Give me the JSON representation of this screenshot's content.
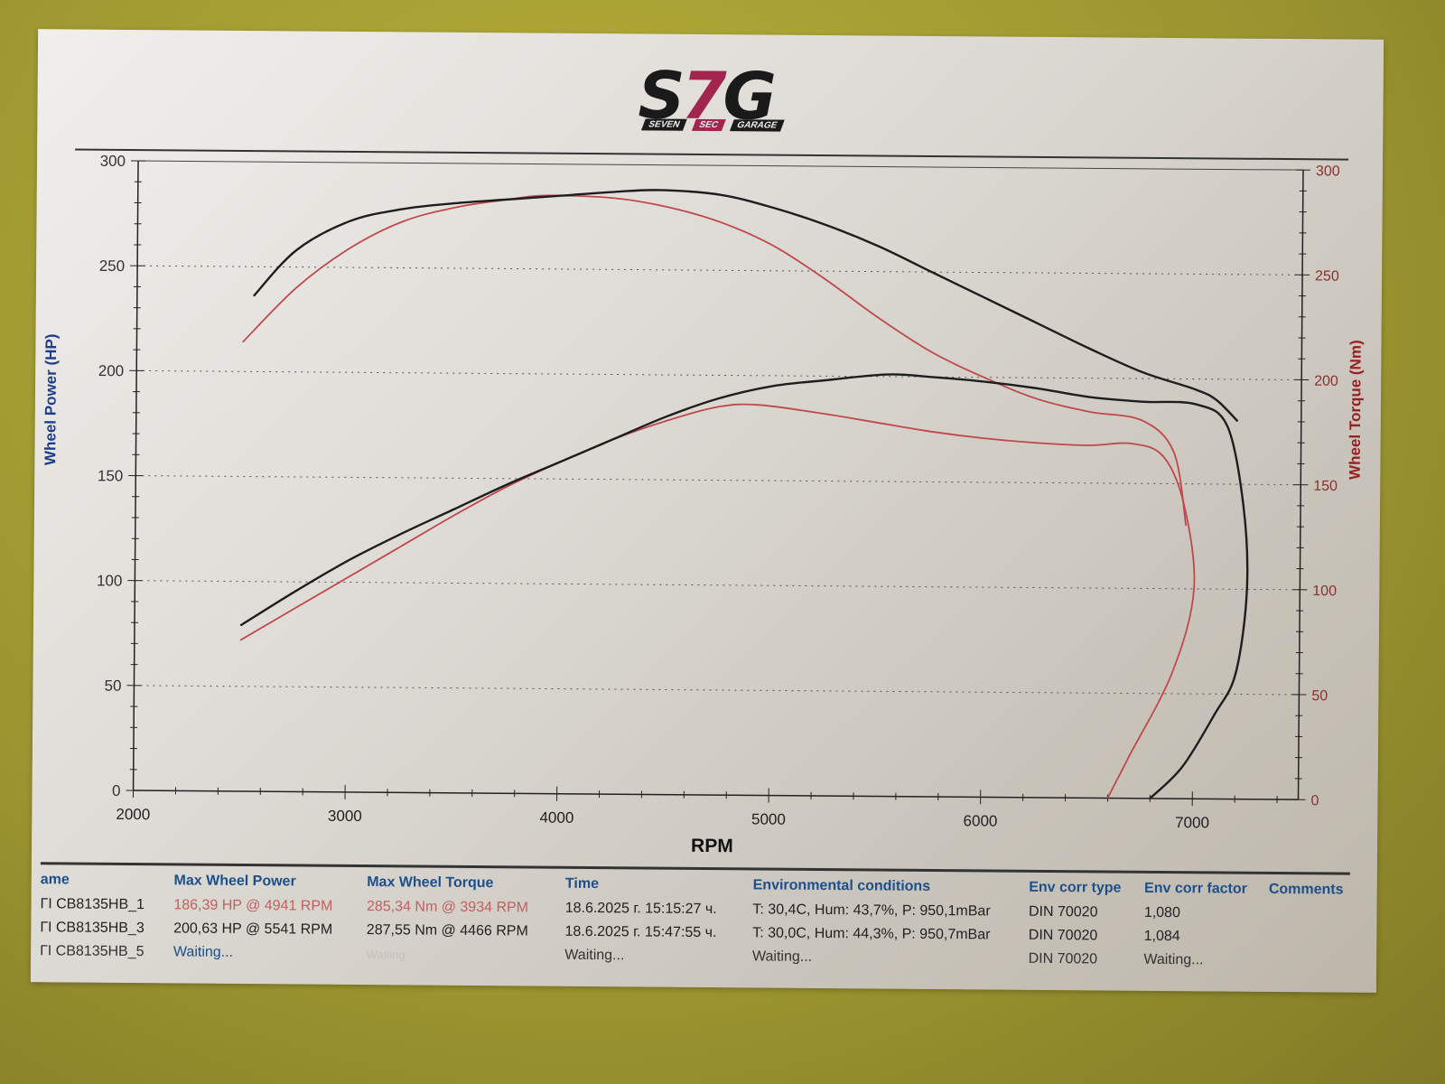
{
  "logo": {
    "letters_left": "S",
    "letters_mid": "7",
    "letters_right": "G",
    "sub": [
      "SEVEN",
      "SEC",
      "GARAGE"
    ]
  },
  "colors": {
    "run1": "#c0484a",
    "run3": "#1e1e1e",
    "left_axis": "#1d3e8a",
    "right_axis": "#9a2020",
    "header": "#1d4f8a"
  },
  "chart_data": {
    "type": "line",
    "title": "",
    "xlabel": "RPM",
    "ylabel": "Wheel Power (HP)",
    "ylabel_right": "Wheel Torque (Nm)",
    "xlim": [
      2000,
      7500
    ],
    "ylim": [
      0,
      300
    ],
    "ylim_right": [
      0,
      300
    ],
    "x_ticks": [
      2000,
      3000,
      4000,
      5000,
      6000,
      7000
    ],
    "y_ticks": [
      0,
      50,
      100,
      150,
      200,
      250,
      300
    ],
    "y_ticks_right": [
      0,
      50,
      100,
      150,
      200,
      250,
      300
    ],
    "grid": "horizontal dotted at 50-unit intervals",
    "series": [
      {
        "name": "CB8135HB_1 Power (HP)",
        "color": "red",
        "axis": "left",
        "x": [
          2500,
          2750,
          3000,
          3250,
          3500,
          3750,
          4000,
          4250,
          4500,
          4750,
          4941,
          5250,
          5500,
          5750,
          6000,
          6250,
          6500,
          6700,
          6850,
          6950,
          7000,
          6900,
          6700,
          6600
        ],
        "y": [
          72,
          87,
          102,
          117,
          132,
          146,
          158,
          169,
          178,
          185,
          186,
          182,
          178,
          174,
          171,
          169,
          168,
          169,
          163,
          140,
          100,
          60,
          20,
          0
        ]
      },
      {
        "name": "CB8135HB_1 Torque (Nm)",
        "color": "red",
        "axis": "right",
        "x": [
          2500,
          2750,
          3000,
          3250,
          3500,
          3750,
          3934,
          4250,
          4500,
          4750,
          5000,
          5250,
          5500,
          5750,
          6000,
          6250,
          6500,
          6750,
          6900,
          6960
        ],
        "y": [
          214,
          240,
          259,
          272,
          279,
          283,
          285,
          284,
          280,
          273,
          262,
          246,
          228,
          212,
          200,
          190,
          184,
          180,
          165,
          130
        ]
      },
      {
        "name": "CB8135HB_3 Power (HP)",
        "color": "black",
        "axis": "left",
        "x": [
          2500,
          2750,
          3000,
          3250,
          3500,
          3750,
          4000,
          4250,
          4500,
          4750,
          5000,
          5250,
          5541,
          5750,
          6000,
          6250,
          6500,
          6750,
          7000,
          7150,
          7230,
          7250,
          7200,
          7100,
          6950,
          6800
        ],
        "y": [
          79,
          95,
          110,
          123,
          135,
          147,
          158,
          169,
          180,
          189,
          195,
          198,
          201,
          200,
          198,
          195,
          191,
          189,
          188,
          178,
          140,
          100,
          60,
          40,
          15,
          0
        ]
      },
      {
        "name": "CB8135HB_3 Torque (Nm)",
        "color": "black",
        "axis": "right",
        "x": [
          2550,
          2750,
          3000,
          3250,
          3500,
          3750,
          4000,
          4250,
          4466,
          4750,
          5000,
          5250,
          5500,
          5750,
          6000,
          6250,
          6500,
          6750,
          7000,
          7100,
          7200
        ],
        "y": [
          236,
          258,
          272,
          278,
          281,
          283,
          285,
          287,
          288,
          286,
          280,
          272,
          262,
          250,
          238,
          226,
          214,
          203,
          195,
          190,
          180
        ]
      }
    ]
  },
  "table": {
    "headers": [
      "ame",
      "Max Wheel Power",
      "Max Wheel Torque",
      "Time",
      "Environmental conditions",
      "Env corr type",
      "Env corr factor",
      "Comments"
    ],
    "rows": [
      [
        "ГI CB8135HB_1",
        "186,39 HP @ 4941 RPM",
        "285,34 Nm @ 3934 RPM",
        "18.6.2025 г. 15:15:27 ч.",
        "T: 30,4C, Hum: 43,7%, P: 950,1mBar",
        "DIN 70020",
        "1,080",
        ""
      ],
      [
        "ГI CB8135HB_3",
        "200,63 HP @ 5541 RPM",
        "287,55 Nm @ 4466 RPM",
        "18.6.2025 г. 15:47:55 ч.",
        "T: 30,0C, Hum: 44,3%, P: 950,7mBar",
        "DIN 70020",
        "1,084",
        ""
      ],
      [
        "ГI CB8135HB_5",
        "Waiting...",
        "Waiting",
        "Waiting...",
        "Waiting...",
        "DIN 70020",
        "Waiting...",
        ""
      ]
    ]
  }
}
